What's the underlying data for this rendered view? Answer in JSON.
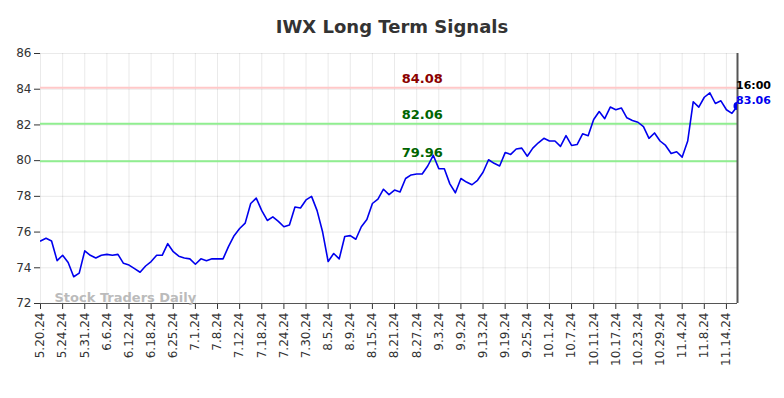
{
  "chart_data": {
    "type": "line",
    "title": "IWX Long Term Signals",
    "watermark": "Stock Traders Daily",
    "color": "#0000ee",
    "grid": true,
    "ylim": [
      72,
      86
    ],
    "yticks": [
      72,
      74,
      76,
      78,
      80,
      82,
      84,
      86
    ],
    "categories": [
      "5.20.24",
      null,
      null,
      null,
      "5.24.24",
      null,
      null,
      null,
      "5.31.24",
      null,
      null,
      null,
      "6.6.24",
      null,
      null,
      null,
      "6.12.24",
      null,
      null,
      null,
      "6.18.24",
      null,
      null,
      null,
      "6.25.24",
      null,
      null,
      null,
      "7.1.24",
      null,
      null,
      null,
      "7.8.24",
      null,
      null,
      null,
      "7.12.24",
      null,
      null,
      null,
      "7.18.24",
      null,
      null,
      null,
      "7.24.24",
      null,
      null,
      null,
      "7.30.24",
      null,
      null,
      null,
      "8.5.24",
      null,
      null,
      null,
      "8.9.24",
      null,
      null,
      null,
      "8.15.24",
      null,
      null,
      null,
      "8.21.24",
      null,
      null,
      null,
      "8.27.24",
      null,
      null,
      null,
      "9.3.24",
      null,
      null,
      null,
      "9.9.24",
      null,
      null,
      null,
      "9.13.24",
      null,
      null,
      null,
      "9.19.24",
      null,
      null,
      null,
      "9.25.24",
      null,
      null,
      null,
      "10.1.24",
      null,
      null,
      null,
      "10.7.24",
      null,
      null,
      null,
      "10.11.24",
      null,
      null,
      null,
      "10.17.24",
      null,
      null,
      null,
      "10.23.24",
      null,
      null,
      null,
      "10.29.24",
      null,
      null,
      null,
      "11.4.24",
      null,
      null,
      null,
      "11.8.24",
      null,
      null,
      null,
      "11.14.24",
      null,
      null
    ],
    "values": [
      75.5,
      75.65,
      75.5,
      74.4,
      74.7,
      74.3,
      73.5,
      73.7,
      74.95,
      74.7,
      74.55,
      74.7,
      74.75,
      74.7,
      74.75,
      74.25,
      74.15,
      73.95,
      73.75,
      74.1,
      74.35,
      74.7,
      74.7,
      75.35,
      74.9,
      74.65,
      74.55,
      74.5,
      74.2,
      74.5,
      74.4,
      74.5,
      74.5,
      74.5,
      75.2,
      75.8,
      76.2,
      76.5,
      77.6,
      77.9,
      77.2,
      76.65,
      76.85,
      76.6,
      76.3,
      76.4,
      77.4,
      77.35,
      77.8,
      78.0,
      77.2,
      76.0,
      74.35,
      74.8,
      74.5,
      75.75,
      75.8,
      75.6,
      76.3,
      76.7,
      77.6,
      77.85,
      78.4,
      78.1,
      78.35,
      78.25,
      79.0,
      79.2,
      79.25,
      79.25,
      79.7,
      80.3,
      79.55,
      79.55,
      78.7,
      78.2,
      79.0,
      78.8,
      78.65,
      78.9,
      79.35,
      80.05,
      79.85,
      79.7,
      80.45,
      80.35,
      80.65,
      80.7,
      80.25,
      80.7,
      81.0,
      81.25,
      81.1,
      81.1,
      80.8,
      81.4,
      80.85,
      80.9,
      81.5,
      81.4,
      82.3,
      82.75,
      82.35,
      83.0,
      82.85,
      82.95,
      82.4,
      82.25,
      82.15,
      81.9,
      81.25,
      81.55,
      81.1,
      80.85,
      80.4,
      80.5,
      80.2,
      81.1,
      83.3,
      83.0,
      83.55,
      83.8,
      83.2,
      83.35,
      82.85,
      82.65,
      83.06
    ],
    "annotations": [
      {
        "value": 84.08,
        "color": "#8b0000"
      },
      {
        "value": 82.06,
        "color": "#006400"
      },
      {
        "value": 79.96,
        "color": "#006400"
      }
    ],
    "last_point_label": "16:00"
  }
}
